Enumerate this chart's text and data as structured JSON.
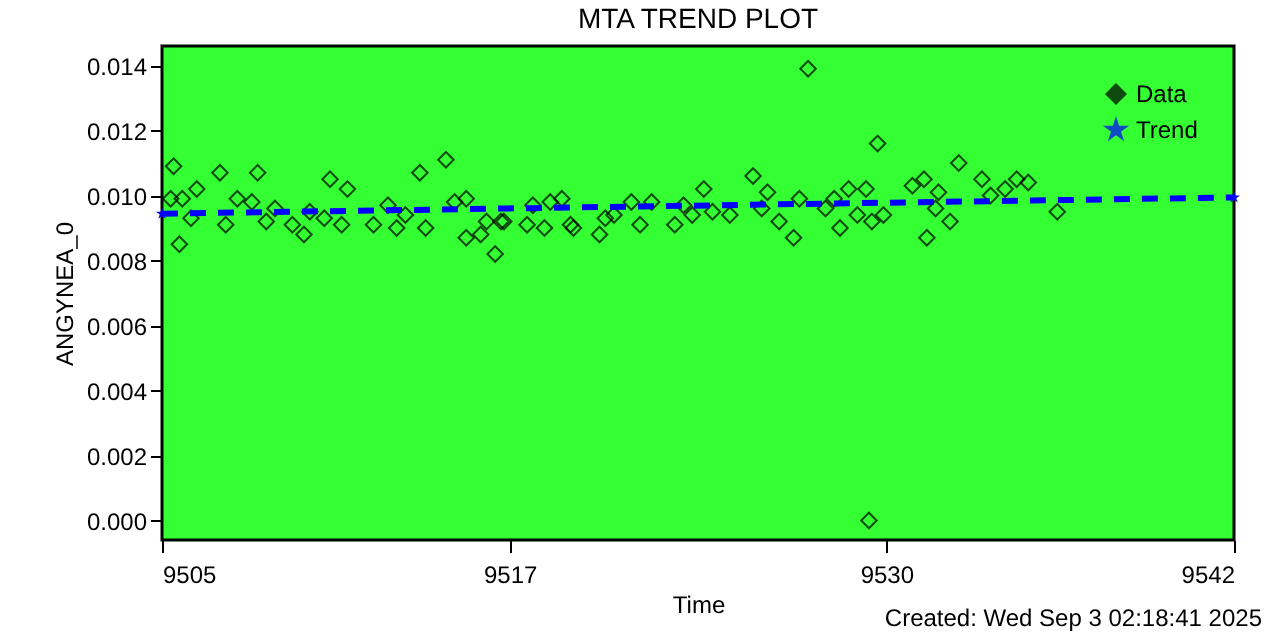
{
  "chart_data": {
    "type": "scatter",
    "title": "MTA TREND PLOT",
    "xlabel": "Time",
    "ylabel": "ANGYNEA_0",
    "annotations": [
      "Created: Wed Sep  3 02:18:41 2025"
    ],
    "xlim": [
      9505,
      9542
    ],
    "xticks": [
      9505,
      9517,
      9530,
      9542
    ],
    "ylim": [
      -0.0006,
      0.0146
    ],
    "yticks": [
      {
        "value": 0,
        "label": "0.000"
      },
      {
        "value": 0.002,
        "label": "0.002"
      },
      {
        "value": 0.004,
        "label": "0.004"
      },
      {
        "value": 0.006,
        "label": "0.006"
      },
      {
        "value": 0.008,
        "label": "0.008"
      },
      {
        "value": 0.01,
        "label": "0.010"
      },
      {
        "value": 0.012,
        "label": "0.012"
      },
      {
        "value": 0.014,
        "label": "0.014"
      }
    ],
    "grid": false,
    "legend": "top right",
    "series": [
      {
        "name": "Data",
        "type": "scatter",
        "marker": "diamond",
        "color": "#000000",
        "x": [
          9505.3,
          9505.4,
          9505.6,
          9505.7,
          9506.0,
          9506.2,
          9507.0,
          9507.2,
          9507.6,
          9508.1,
          9508.3,
          9508.6,
          9508.9,
          9509.5,
          9509.9,
          9510.1,
          9510.6,
          9510.8,
          9511.2,
          9511.4,
          9512.3,
          9512.8,
          9513.1,
          9513.4,
          9513.9,
          9514.1,
          9514.8,
          9515.1,
          9515.5,
          9515.5,
          9516.0,
          9516.2,
          9516.5,
          9516.7,
          9516.8,
          9517.6,
          9517.8,
          9518.2,
          9518.4,
          9518.8,
          9519.1,
          9519.2,
          9520.1,
          9520.3,
          9520.6,
          9521.2,
          9521.5,
          9521.9,
          9522.7,
          9523.0,
          9523.3,
          9523.7,
          9524.0,
          9524.6,
          9525.4,
          9525.7,
          9525.9,
          9526.3,
          9526.8,
          9527.0,
          9527.3,
          9527.9,
          9528.2,
          9528.4,
          9528.7,
          9529.0,
          9529.3,
          9529.4,
          9529.5,
          9529.7,
          9529.9,
          9530.9,
          9531.3,
          9531.4,
          9531.7,
          9531.8,
          9532.2,
          9532.5,
          9533.3,
          9533.6,
          9534.1,
          9534.5,
          9534.9,
          9535.9
        ],
        "values": [
          0.0099,
          0.0109,
          0.0085,
          0.0099,
          0.0093,
          0.0102,
          0.0107,
          0.0091,
          0.0099,
          0.0098,
          0.0107,
          0.0092,
          0.0096,
          0.0091,
          0.0088,
          0.0095,
          0.0093,
          0.0105,
          0.0091,
          0.0102,
          0.0091,
          0.0097,
          0.009,
          0.0094,
          0.0107,
          0.009,
          0.0111,
          0.0098,
          0.0099,
          0.0087,
          0.0088,
          0.0092,
          0.0082,
          0.0092,
          0.0092,
          0.0091,
          0.0097,
          0.009,
          0.0098,
          0.0099,
          0.0091,
          0.009,
          0.0088,
          0.0093,
          0.0094,
          0.0098,
          0.0091,
          0.0098,
          0.0091,
          0.0097,
          0.0094,
          0.0102,
          0.0095,
          0.0094,
          0.0106,
          0.0096,
          0.0101,
          0.0092,
          0.0087,
          0.0099,
          0.0139,
          0.0096,
          0.0099,
          0.009,
          0.0102,
          0.0094,
          0.0102,
          0.0,
          0.0092,
          0.0116,
          0.0094,
          0.0103,
          0.0105,
          0.0087,
          0.0096,
          0.0101,
          0.0092,
          0.011,
          0.0105,
          0.01,
          0.0102,
          0.0105,
          0.0104,
          0.0095
        ]
      },
      {
        "name": "Trend",
        "type": "line",
        "marker": "star",
        "line_style": "dashed",
        "color": "#0000ff",
        "x": [
          9505,
          9542
        ],
        "values": [
          0.00944,
          0.00994
        ]
      }
    ]
  }
}
